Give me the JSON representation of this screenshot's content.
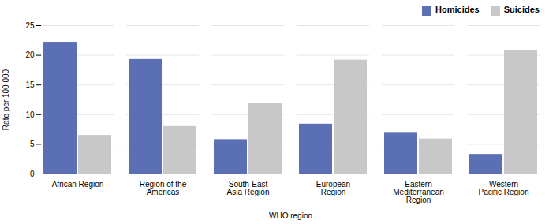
{
  "chart_data": {
    "type": "bar",
    "categories": [
      "African Region",
      "Region of the\nAmericas",
      "South-East\nAsia Region",
      "European\nRegion",
      "Eastern\nMediterranean\nRegion",
      "Western\nPacific Region"
    ],
    "series": [
      {
        "name": "Homicides",
        "color": "#5b6fb5",
        "values": [
          22.2,
          19.3,
          5.8,
          8.4,
          7.0,
          3.3
        ]
      },
      {
        "name": "Suicides",
        "color": "#c8c8c8",
        "values": [
          6.5,
          8.0,
          11.9,
          19.2,
          5.9,
          20.8
        ]
      }
    ],
    "xlabel": "WHO region",
    "ylabel": "Rate per 100 000",
    "ylim": [
      0,
      25
    ],
    "yticks": [
      0,
      5,
      10,
      15,
      20,
      25
    ],
    "grid": true,
    "legend": "upper right"
  }
}
